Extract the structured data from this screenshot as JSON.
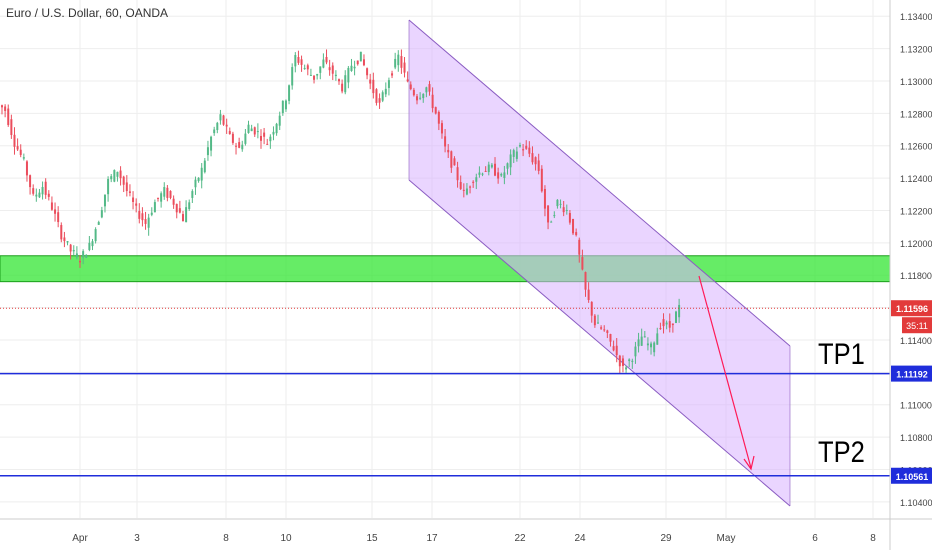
{
  "header": {
    "title": "Euro / U.S. Dollar, 60, OANDA"
  },
  "colors": {
    "up_candle": "#53b987",
    "down_candle": "#eb4d5c",
    "zone": "#33e633",
    "channel_fill": "#d9b3ff",
    "channel_line": "#8a5cc2",
    "current_price_line": "#e23a3a",
    "tp_line": "#1f2ddb",
    "arrow": "#ff1a57",
    "axis_text": "#444444",
    "grid": "#eeeeee"
  },
  "annotations": {
    "tp1": "TP1",
    "tp2": "TP2",
    "current_price": "1.11596",
    "countdown": "35:11",
    "tp1_price": "1.11192",
    "tp2_price": "1.10561"
  },
  "chart_data": {
    "type": "candlestick",
    "title": "Euro / U.S. Dollar, 60, OANDA",
    "ylim": [
      1.103,
      1.135
    ],
    "y_ticks": [
      "1.13400",
      "1.13200",
      "1.13000",
      "1.12800",
      "1.12600",
      "1.12400",
      "1.12200",
      "1.12000",
      "1.11800",
      "1.11600",
      "1.11400",
      "1.11200",
      "1.11000",
      "1.10800",
      "1.10600",
      "1.10400"
    ],
    "x_ticks": [
      "Apr",
      "3",
      "8",
      "10",
      "15",
      "17",
      "22",
      "24",
      "29",
      "May",
      "6",
      "8"
    ],
    "series": [
      {
        "values_close": [
          1.1282,
          1.1262,
          1.125,
          1.1228,
          1.1235,
          1.1222,
          1.1205,
          1.1195,
          1.119,
          1.1198,
          1.1215,
          1.1238,
          1.1245,
          1.1232,
          1.122,
          1.1212,
          1.1225,
          1.1232,
          1.1225,
          1.1215,
          1.1232,
          1.1245,
          1.1265,
          1.1278,
          1.1265,
          1.1258,
          1.1272,
          1.1268,
          1.1262,
          1.1275,
          1.129,
          1.1315,
          1.1308,
          1.1302,
          1.1312,
          1.1305,
          1.1296,
          1.131,
          1.1315,
          1.1298,
          1.1285,
          1.1302,
          1.1315,
          1.1298,
          1.129,
          1.1296,
          1.128,
          1.1258,
          1.1245,
          1.123,
          1.124,
          1.1245,
          1.1246,
          1.124,
          1.1252,
          1.126,
          1.1255,
          1.1245,
          1.121,
          1.1225,
          1.122,
          1.1202,
          1.117,
          1.115,
          1.1145,
          1.1135,
          1.1122,
          1.113,
          1.1142,
          1.1135,
          1.115,
          1.1148,
          1.116
        ]
      }
    ],
    "zones": [
      {
        "type": "band",
        "y_from": 1.1176,
        "y_to": 1.1192
      }
    ],
    "horizontal_lines": [
      {
        "y": 1.11596,
        "style": "dotted"
      },
      {
        "y": 1.11192,
        "style": "solid"
      },
      {
        "y": 1.10561,
        "style": "solid"
      }
    ]
  }
}
